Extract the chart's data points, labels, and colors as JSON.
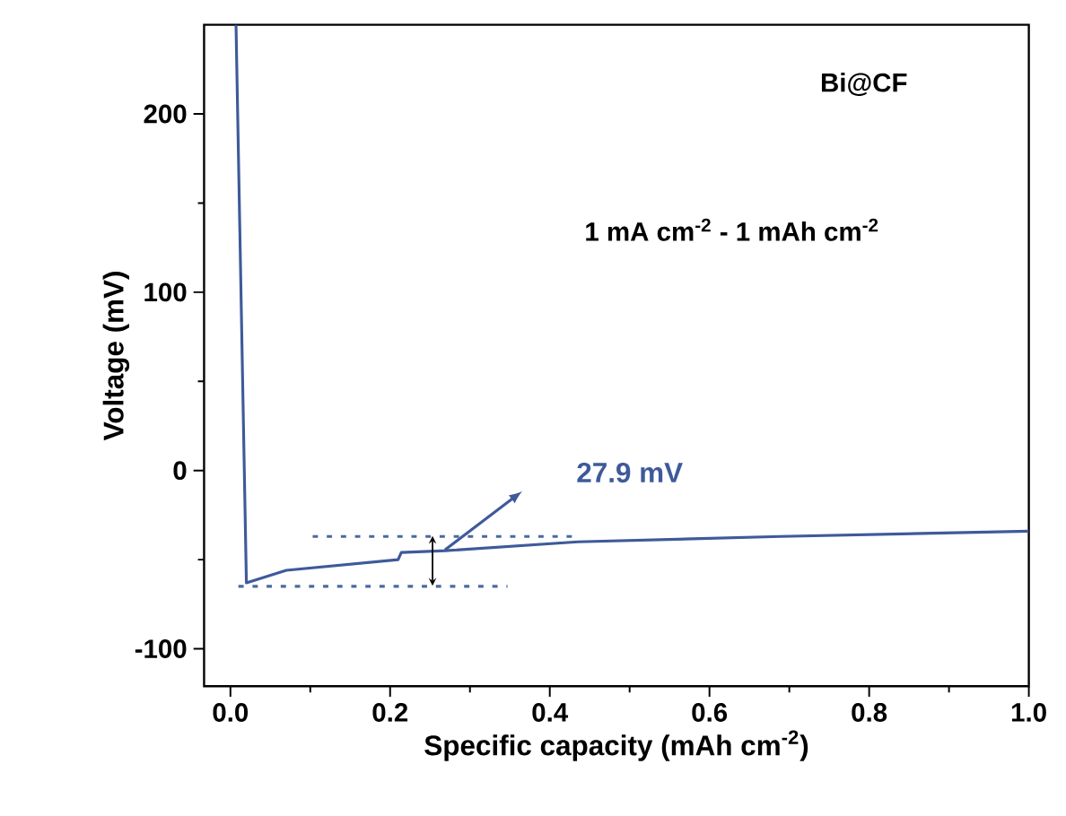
{
  "chart_data": {
    "type": "line",
    "xlabel": "Specific capacity (mAh cm$^{-2}$)",
    "ylabel": "Voltage (mV)",
    "annotations": [
      "Bi@CF",
      "1 mA cm$^{-2}$ - 1 mAh cm$^{-2}$",
      "27.9 mV"
    ],
    "xlim": [
      -0.033,
      1.0
    ],
    "ylim": [
      -121,
      250
    ],
    "xticks": [
      {
        "value": 0,
        "label": "0.0"
      },
      {
        "value": 0.2,
        "label": "0.2"
      },
      {
        "value": 0.4,
        "label": "0.4"
      },
      {
        "value": 0.6,
        "label": "0.6"
      },
      {
        "value": 0.8,
        "label": "0.8"
      },
      {
        "value": 1.0,
        "label": "1.0"
      }
    ],
    "yticks": [
      -100,
      0,
      100,
      200
    ],
    "series": [
      {
        "color": "#3f5a9a",
        "line_style": "solid",
        "x": [
          0.007,
          0.02,
          0.07,
          0.21,
          0.214,
          0.269,
          0.435,
          0.689,
          1.0
        ],
        "values": [
          250,
          -63,
          -56,
          -50,
          -46,
          -45,
          -40,
          -37,
          -34
        ]
      },
      {
        "color": "#4a6a9e",
        "line_style": "dashed",
        "x": [
          0.103,
          0.435
        ],
        "values": [
          -37,
          -37
        ]
      },
      {
        "color": "#4a6a9e",
        "line_style": "dashed",
        "x": [
          0.01,
          0.347
        ],
        "values": [
          -65,
          -65
        ]
      }
    ]
  }
}
